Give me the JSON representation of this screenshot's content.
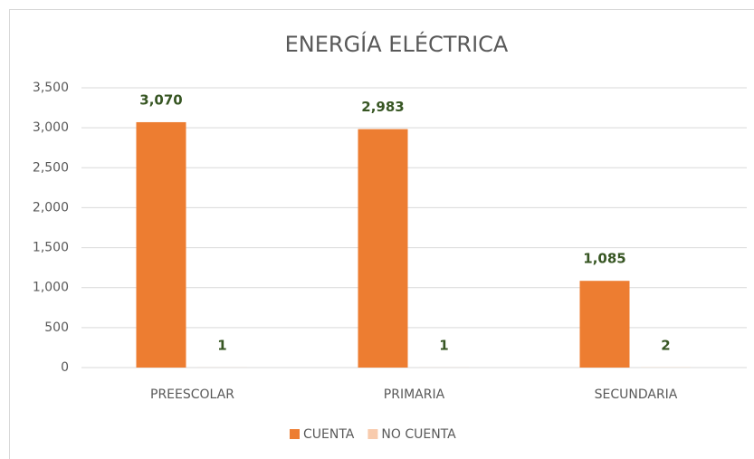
{
  "chart_data": {
    "type": "bar",
    "title": "ENERGÍA ELÉCTRICA",
    "categories": [
      "PREESCOLAR",
      "PRIMARIA",
      "SECUNDARIA"
    ],
    "series": [
      {
        "name": "CUENTA",
        "color": "#ED7D31",
        "values": [
          3070,
          2983,
          1085
        ],
        "value_labels": [
          "3,070",
          "2,983",
          "1,085"
        ]
      },
      {
        "name": "NO CUENTA",
        "color": "#F8CBAD",
        "values": [
          1,
          1,
          2
        ]
      }
    ],
    "ylim": [
      0,
      3500
    ],
    "yticks": [
      0,
      500,
      {
        "value": 1000,
        "label": "1,000"
      },
      {
        "value": 1500,
        "label": "1,500"
      },
      {
        "value": 2000,
        "label": "2,000"
      },
      {
        "value": 2500,
        "label": "2,500"
      },
      {
        "value": 3000,
        "label": "3,000"
      },
      {
        "value": 3500,
        "label": "3,500"
      }
    ],
    "grid": true,
    "legend": "bottom",
    "value_label_color": "#375623"
  }
}
